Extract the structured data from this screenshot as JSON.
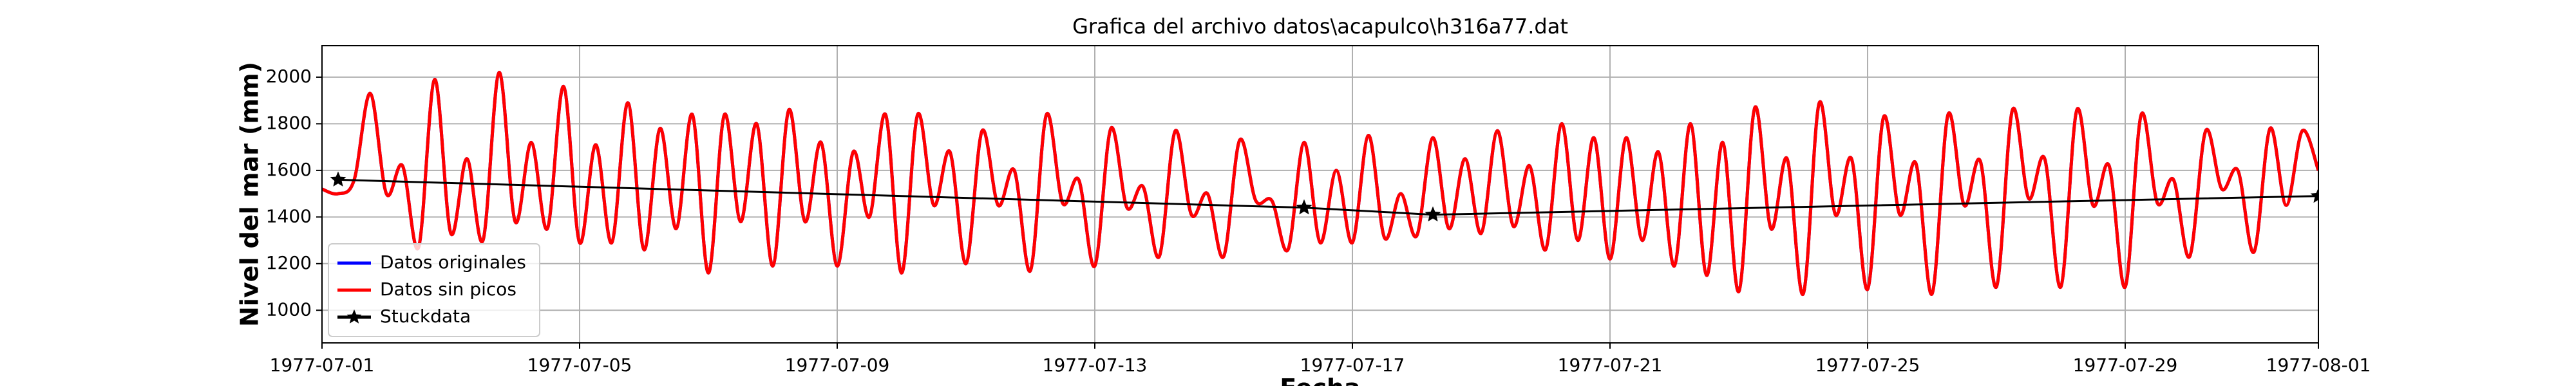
{
  "chart_data": {
    "type": "line",
    "title": "Grafica del archivo datos\\acapulco\\h316a77.dat",
    "x_label": "Fecha",
    "y_label": "Nivel del mar (mm)",
    "xlim": [
      "1977-07-01",
      "1977-08-01"
    ],
    "xticks": [
      "1977-07-01",
      "1977-07-05",
      "1977-07-09",
      "1977-07-13",
      "1977-07-17",
      "1977-07-21",
      "1977-07-25",
      "1977-07-29",
      "1977-08-01"
    ],
    "ylim": [
      860,
      2135
    ],
    "yticks": [
      1000,
      1200,
      1400,
      1600,
      1800,
      2000
    ],
    "grid": true,
    "legend": "lower left",
    "x": [
      "1977-07-01 00:00",
      "1977-07-01 06:00",
      "1977-07-01 12:00",
      "1977-07-01 18:00",
      "1977-07-02 00:00",
      "1977-07-02 06:00",
      "1977-07-02 12:00",
      "1977-07-02 18:00",
      "1977-07-03 00:00",
      "1977-07-03 06:00",
      "1977-07-03 12:00",
      "1977-07-03 18:00",
      "1977-07-04 00:00",
      "1977-07-04 06:00",
      "1977-07-04 12:00",
      "1977-07-04 18:00",
      "1977-07-05 00:00",
      "1977-07-05 06:00",
      "1977-07-05 12:00",
      "1977-07-05 18:00",
      "1977-07-06 00:00",
      "1977-07-06 06:00",
      "1977-07-06 12:00",
      "1977-07-06 18:00",
      "1977-07-07 00:00",
      "1977-07-07 06:00",
      "1977-07-07 12:00",
      "1977-07-07 18:00",
      "1977-07-08 00:00",
      "1977-07-08 06:00",
      "1977-07-08 12:00",
      "1977-07-08 18:00",
      "1977-07-09 00:00",
      "1977-07-09 06:00",
      "1977-07-09 12:00",
      "1977-07-09 18:00",
      "1977-07-10 00:00",
      "1977-07-10 06:00",
      "1977-07-10 12:00",
      "1977-07-10 18:00",
      "1977-07-11 00:00",
      "1977-07-11 06:00",
      "1977-07-11 12:00",
      "1977-07-11 18:00",
      "1977-07-12 00:00",
      "1977-07-12 06:00",
      "1977-07-12 12:00",
      "1977-07-12 18:00",
      "1977-07-13 00:00",
      "1977-07-13 06:00",
      "1977-07-13 12:00",
      "1977-07-13 18:00",
      "1977-07-14 00:00",
      "1977-07-14 06:00",
      "1977-07-14 12:00",
      "1977-07-14 18:00",
      "1977-07-15 00:00",
      "1977-07-15 06:00",
      "1977-07-15 12:00",
      "1977-07-15 18:00",
      "1977-07-16 00:00",
      "1977-07-16 06:00",
      "1977-07-16 12:00",
      "1977-07-16 18:00",
      "1977-07-17 00:00",
      "1977-07-17 06:00",
      "1977-07-17 12:00",
      "1977-07-17 18:00",
      "1977-07-18 00:00",
      "1977-07-18 06:00",
      "1977-07-18 12:00",
      "1977-07-18 18:00",
      "1977-07-19 00:00",
      "1977-07-19 06:00",
      "1977-07-19 12:00",
      "1977-07-19 18:00",
      "1977-07-20 00:00",
      "1977-07-20 06:00",
      "1977-07-20 12:00",
      "1977-07-20 18:00",
      "1977-07-21 00:00",
      "1977-07-21 06:00",
      "1977-07-21 12:00",
      "1977-07-21 18:00",
      "1977-07-22 00:00",
      "1977-07-22 06:00",
      "1977-07-22 12:00",
      "1977-07-22 18:00",
      "1977-07-23 00:00",
      "1977-07-23 06:00",
      "1977-07-23 12:00",
      "1977-07-23 18:00",
      "1977-07-24 00:00",
      "1977-07-24 06:00",
      "1977-07-24 12:00",
      "1977-07-24 18:00",
      "1977-07-25 00:00",
      "1977-07-25 06:00",
      "1977-07-25 12:00",
      "1977-07-25 18:00",
      "1977-07-26 00:00",
      "1977-07-26 06:00",
      "1977-07-26 12:00",
      "1977-07-26 18:00",
      "1977-07-27 00:00",
      "1977-07-27 06:00",
      "1977-07-27 12:00",
      "1977-07-27 18:00",
      "1977-07-28 00:00",
      "1977-07-28 06:00",
      "1977-07-28 12:00",
      "1977-07-28 18:00",
      "1977-07-29 00:00",
      "1977-07-29 06:00",
      "1977-07-29 12:00",
      "1977-07-29 18:00",
      "1977-07-30 00:00",
      "1977-07-30 06:00",
      "1977-07-30 12:00",
      "1977-07-30 18:00",
      "1977-07-31 00:00",
      "1977-07-31 06:00",
      "1977-07-31 12:00",
      "1977-07-31 18:00",
      "1977-08-01 00:00"
    ],
    "series": [
      {
        "name": "Datos originales",
        "color": "#0000ff",
        "values": [
          1520,
          1500,
          1560,
          1930,
          1500,
          1620,
          1270,
          1990,
          1330,
          1650,
          1300,
          2020,
          1380,
          1720,
          1350,
          1960,
          1290,
          1710,
          1290,
          1890,
          1260,
          1780,
          1350,
          1840,
          1160,
          1840,
          1380,
          1800,
          1190,
          1860,
          1380,
          1720,
          1190,
          1680,
          1400,
          1840,
          1160,
          1840,
          1450,
          1680,
          1200,
          1770,
          1450,
          1600,
          1170,
          1840,
          1460,
          1560,
          1190,
          1780,
          1440,
          1530,
          1230,
          1770,
          1410,
          1500,
          1230,
          1730,
          1470,
          1470,
          1260,
          1720,
          1290,
          1600,
          1290,
          1750,
          1310,
          1500,
          1320,
          1740,
          1350,
          1650,
          1330,
          1770,
          1360,
          1620,
          1260,
          1800,
          1300,
          1740,
          1220,
          1740,
          1300,
          1680,
          1190,
          1800,
          1150,
          1720,
          1080,
          1870,
          1350,
          1650,
          1070,
          1890,
          1410,
          1650,
          1090,
          1830,
          1410,
          1630,
          1070,
          1840,
          1450,
          1640,
          1100,
          1860,
          1480,
          1650,
          1100,
          1860,
          1450,
          1620,
          1100,
          1840,
          1460,
          1560,
          1230,
          1770,
          1520,
          1600,
          1250,
          1780,
          1450,
          1770,
          1600
        ]
      },
      {
        "name": "Datos sin picos",
        "color": "#ff0000",
        "values": [
          1520,
          1500,
          1560,
          1930,
          1500,
          1620,
          1270,
          1990,
          1330,
          1650,
          1300,
          2020,
          1380,
          1720,
          1350,
          1960,
          1290,
          1710,
          1290,
          1890,
          1260,
          1780,
          1350,
          1840,
          1160,
          1840,
          1380,
          1800,
          1190,
          1860,
          1380,
          1720,
          1190,
          1680,
          1400,
          1840,
          1160,
          1840,
          1450,
          1680,
          1200,
          1770,
          1450,
          1600,
          1170,
          1840,
          1460,
          1560,
          1190,
          1780,
          1440,
          1530,
          1230,
          1770,
          1410,
          1500,
          1230,
          1730,
          1470,
          1470,
          1260,
          1720,
          1290,
          1600,
          1290,
          1750,
          1310,
          1500,
          1320,
          1740,
          1350,
          1650,
          1330,
          1770,
          1360,
          1620,
          1260,
          1800,
          1300,
          1740,
          1220,
          1740,
          1300,
          1680,
          1190,
          1800,
          1150,
          1720,
          1080,
          1870,
          1350,
          1650,
          1070,
          1890,
          1410,
          1650,
          1090,
          1830,
          1410,
          1630,
          1070,
          1840,
          1450,
          1640,
          1100,
          1860,
          1480,
          1650,
          1100,
          1860,
          1450,
          1620,
          1100,
          1840,
          1460,
          1560,
          1230,
          1770,
          1520,
          1600,
          1250,
          1780,
          1450,
          1770,
          1600
        ]
      },
      {
        "name": "Stuckdata",
        "color": "#000000",
        "marker": "star",
        "x": [
          "1977-07-01 06:00",
          "1977-07-16 06:00",
          "1977-07-18 06:00",
          "1977-08-01 00:00"
        ],
        "values": [
          1560,
          1440,
          1410,
          1490
        ]
      }
    ]
  }
}
